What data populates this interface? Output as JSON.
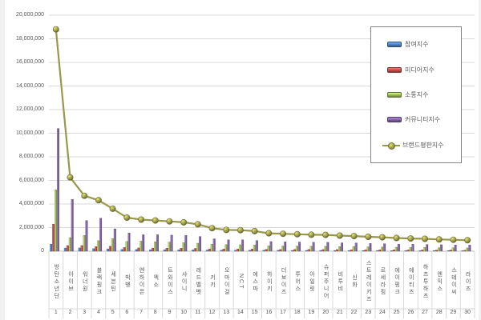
{
  "chart_data": {
    "type": "bar+line",
    "title": "",
    "categories": [
      "방탄소년단",
      "아이브",
      "워너원",
      "블랙핑크",
      "세븐틴",
      "빅뱅",
      "엔하이픈",
      "엑소",
      "트와이스",
      "샤이니",
      "레드벨벳",
      "키키",
      "오마이걸",
      "NCT",
      "에스파",
      "하이키",
      "더보이즈",
      "투어스",
      "아일릿",
      "슈퍼주니어",
      "비투비",
      "신화",
      "스트레이키즈",
      "르세라핌",
      "에이핑크",
      "에이티즈",
      "하츠투하츠",
      "엔믹스",
      "스테이씨",
      "라이즈"
    ],
    "rank_labels": [
      "1",
      "2",
      "3",
      "4",
      "5",
      "6",
      "7",
      "8",
      "9",
      "10",
      "11",
      "12",
      "13",
      "14",
      "15",
      "16",
      "17",
      "18",
      "19",
      "20",
      "21",
      "22",
      "23",
      "24",
      "25",
      "26",
      "27",
      "28",
      "29",
      "30"
    ],
    "series": [
      {
        "name": "참여지수",
        "type": "bar",
        "color": "#4F81BD",
        "values": [
          600000,
          270000,
          280000,
          220000,
          200000,
          150000,
          140000,
          130000,
          130000,
          120000,
          110000,
          100000,
          90000,
          90000,
          90000,
          80000,
          80000,
          70000,
          70000,
          70000,
          70000,
          60000,
          60000,
          60000,
          60000,
          50000,
          50000,
          50000,
          50000,
          40000
        ]
      },
      {
        "name": "미디어지수",
        "type": "bar",
        "color": "#C0504D",
        "values": [
          2300000,
          480000,
          480000,
          400000,
          420000,
          320000,
          280000,
          270000,
          260000,
          250000,
          240000,
          200000,
          190000,
          180000,
          180000,
          160000,
          150000,
          150000,
          150000,
          140000,
          140000,
          130000,
          130000,
          120000,
          120000,
          110000,
          110000,
          100000,
          100000,
          90000
        ]
      },
      {
        "name": "소통지수",
        "type": "bar",
        "color": "#9BBB59",
        "values": [
          5200000,
          1150000,
          1340000,
          900000,
          1080000,
          830000,
          860000,
          800000,
          780000,
          730000,
          680000,
          600000,
          560000,
          550000,
          520000,
          460000,
          450000,
          440000,
          420000,
          420000,
          400000,
          390000,
          370000,
          360000,
          340000,
          330000,
          320000,
          300000,
          290000,
          280000
        ]
      },
      {
        "name": "커뮤니티지수",
        "type": "bar",
        "color": "#8064A2",
        "values": [
          10400000,
          4400000,
          2600000,
          2800000,
          1900000,
          1550000,
          1400000,
          1400000,
          1360000,
          1350000,
          1250000,
          1050000,
          960000,
          960000,
          910000,
          820000,
          800000,
          780000,
          760000,
          750000,
          710000,
          700000,
          660000,
          640000,
          600000,
          590000,
          570000,
          550000,
          530000,
          520000
        ]
      },
      {
        "name": "브랜드평판지수",
        "type": "line",
        "color": "#98984C",
        "values": [
          18800000,
          6250000,
          4700000,
          4320000,
          3600000,
          2850000,
          2680000,
          2600000,
          2530000,
          2450000,
          2280000,
          1950000,
          1800000,
          1780000,
          1700000,
          1520000,
          1480000,
          1440000,
          1400000,
          1380000,
          1320000,
          1280000,
          1220000,
          1180000,
          1120000,
          1080000,
          1050000,
          1000000,
          970000,
          930000
        ]
      }
    ],
    "ylim": [
      0,
      20000000
    ],
    "ytick_interval": 2000000,
    "ytick_labels": [
      "0",
      "2,000,000",
      "4,000,000",
      "6,000,000",
      "8,000,000",
      "10,000,000",
      "12,000,000",
      "14,000,000",
      "16,000,000",
      "18,000,000",
      "20,000,000"
    ],
    "grid": true,
    "legend_position": "top-right"
  }
}
